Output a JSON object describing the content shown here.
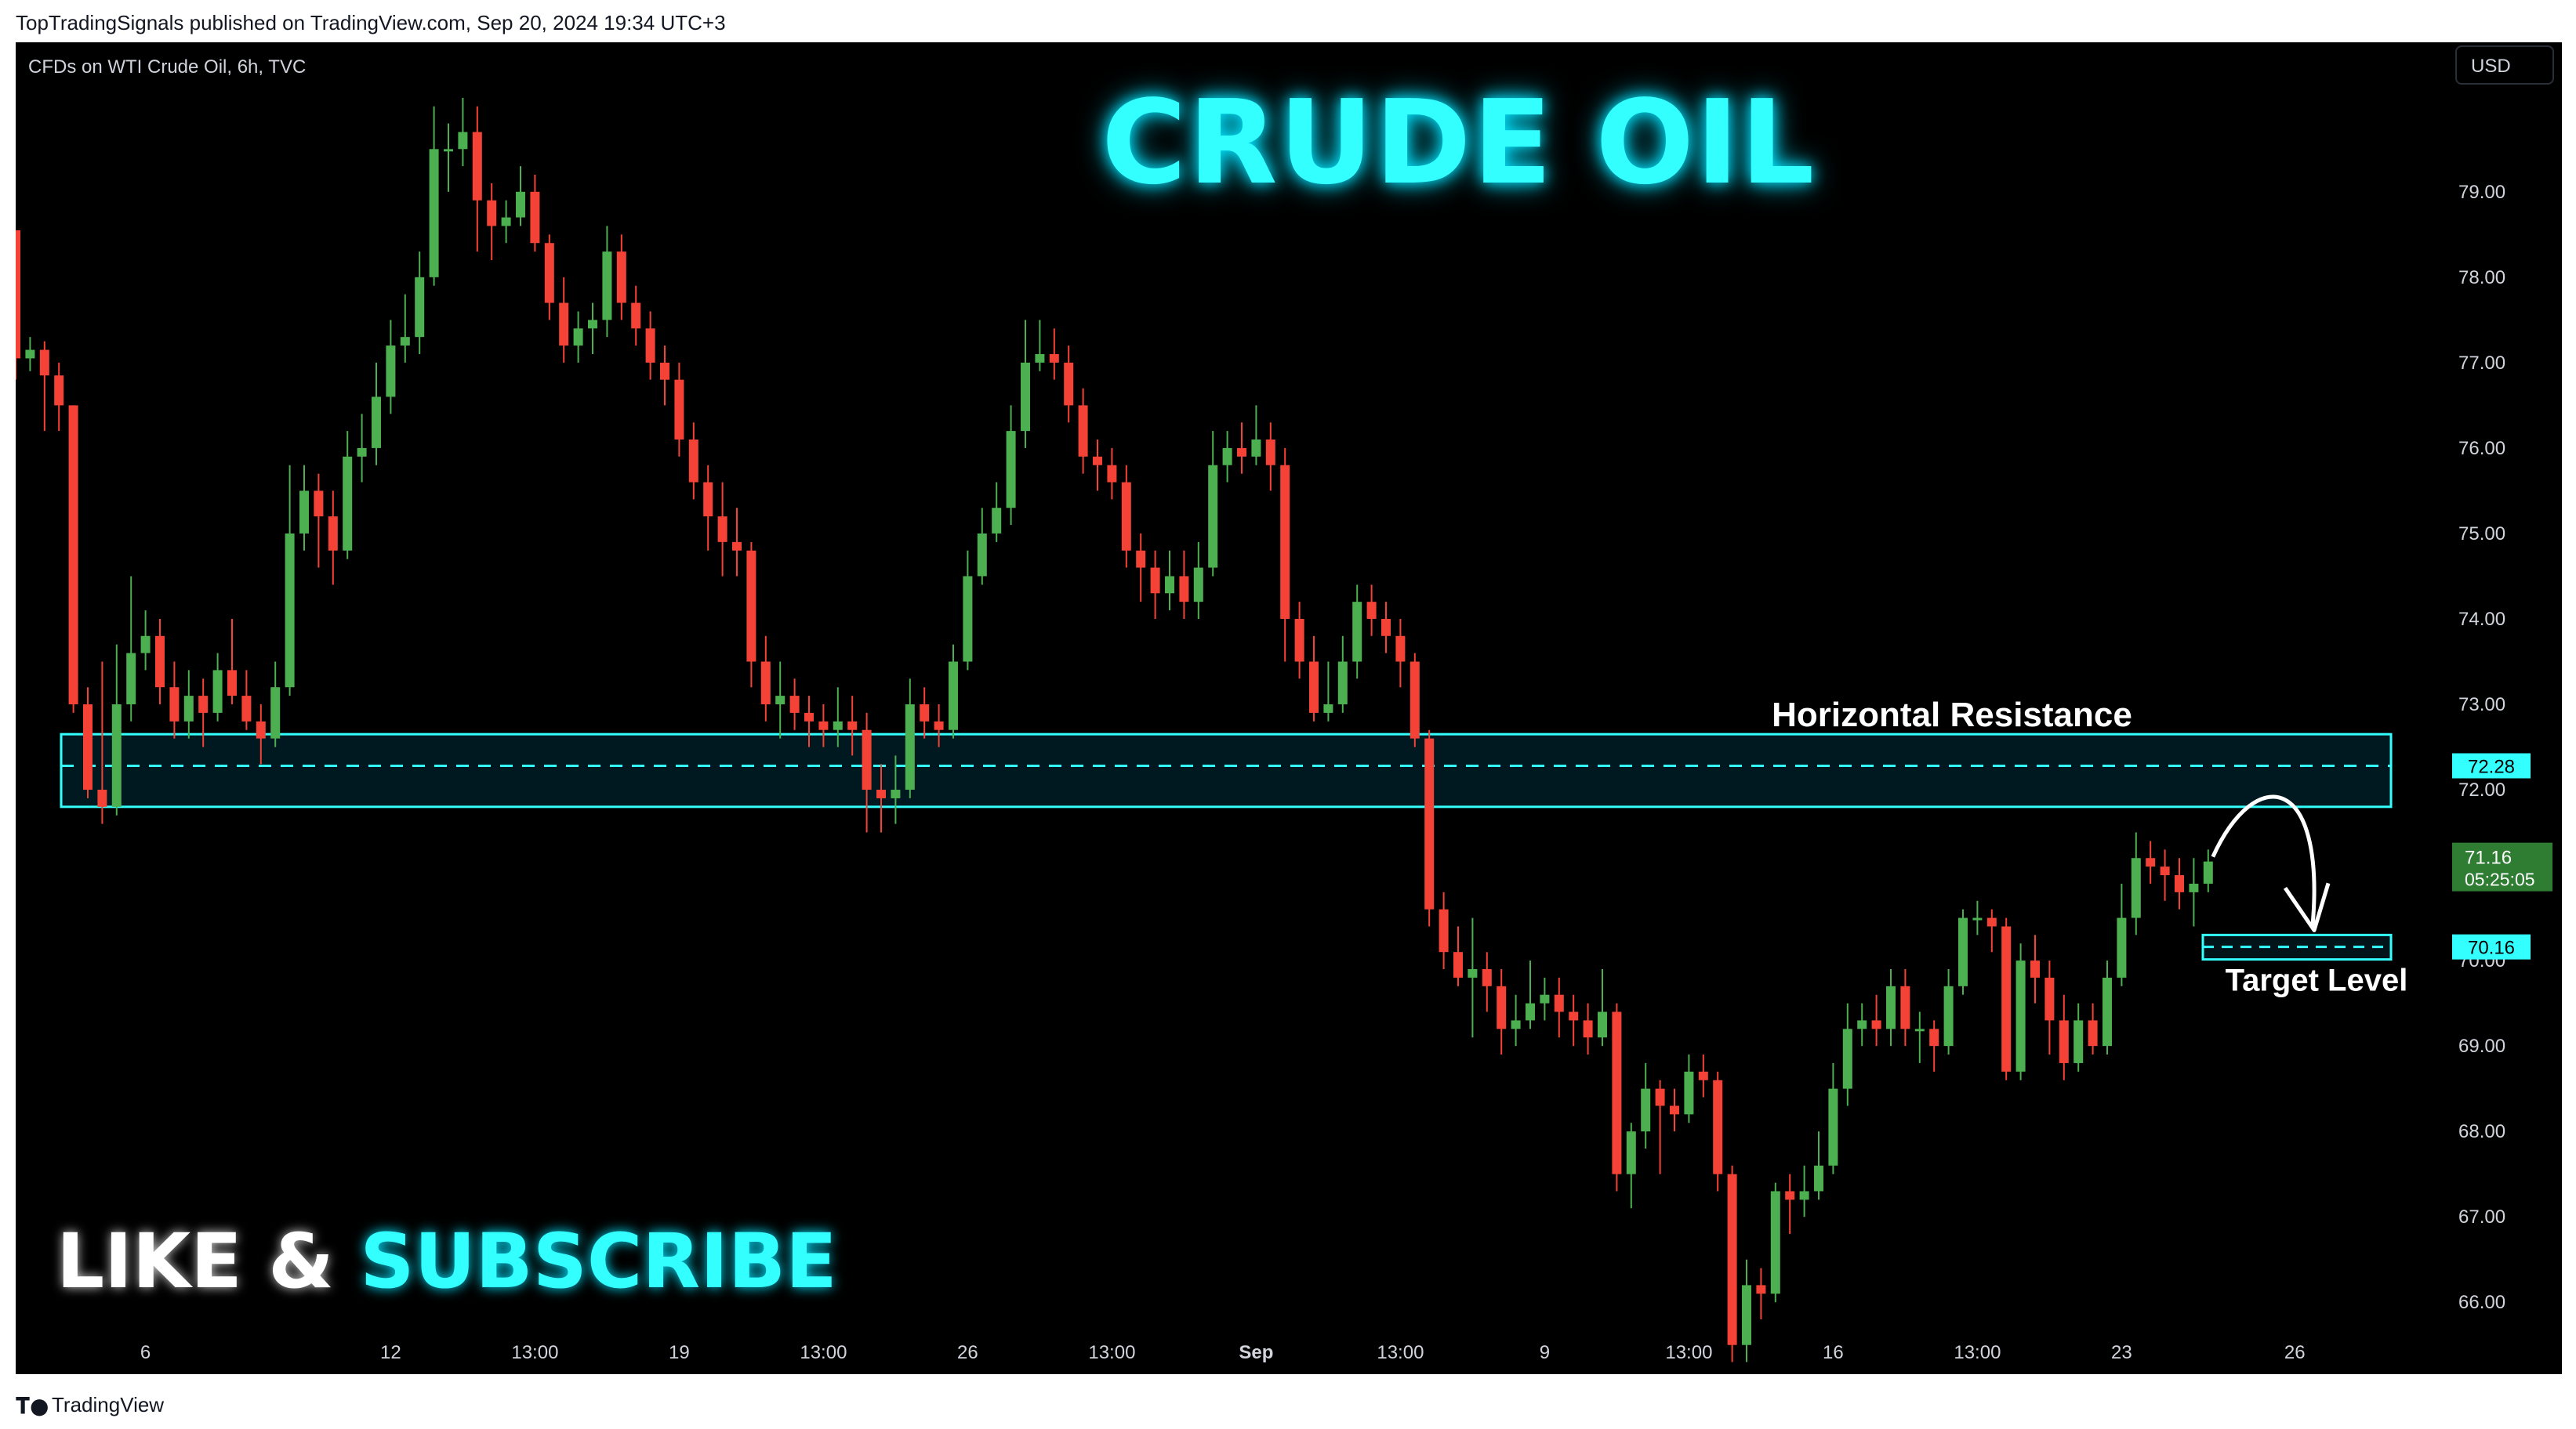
{
  "header": {
    "publish_line": "TopTradingSignals published on TradingView.com, Sep 20, 2024 19:34 UTC+3"
  },
  "chart_header": {
    "symbol_info": "CFDs on WTI Crude Oil, 6h, TVC",
    "currency": "USD"
  },
  "overlay": {
    "title": "CRUDE OIL",
    "cta_like": "LIKE & ",
    "cta_subscribe": "SUBSCRIBE"
  },
  "footer": {
    "brand": "TradingView",
    "logo_icon": "tradingview-logo-icon"
  },
  "colors": {
    "up": "#4caf50",
    "down": "#f44336",
    "accent": "#33ffff",
    "background": "#000000"
  },
  "chart_data": {
    "type": "candlestick",
    "title": "CRUDE OIL",
    "symbol": "CFDs on WTI Crude Oil, 6h, TVC",
    "ylim": [
      65.25,
      80.75
    ],
    "y_ticks": [
      "79.00",
      "78.00",
      "77.00",
      "76.00",
      "75.00",
      "74.00",
      "73.00",
      "72.00",
      "70.00",
      "69.00",
      "68.00",
      "67.00",
      "66.00"
    ],
    "x_ticks": [
      {
        "label": "6",
        "i": 9
      },
      {
        "label": "12",
        "i": 26
      },
      {
        "label": "13:00",
        "i": 36
      },
      {
        "label": "19",
        "i": 46
      },
      {
        "label": "13:00",
        "i": 56
      },
      {
        "label": "26",
        "i": 66
      },
      {
        "label": "13:00",
        "i": 76
      },
      {
        "label": "Sep",
        "i": 86
      },
      {
        "label": "13:00",
        "i": 96
      },
      {
        "label": "9",
        "i": 106
      },
      {
        "label": "13:00",
        "i": 116
      },
      {
        "label": "16",
        "i": 126
      },
      {
        "label": "13:00",
        "i": 136
      },
      {
        "label": "23",
        "i": 146
      },
      {
        "label": "26",
        "i": 158
      }
    ],
    "candles": [
      [
        78.55,
        77.05,
        78.55,
        76.8
      ],
      [
        77.05,
        77.15,
        77.3,
        76.9
      ],
      [
        77.15,
        76.85,
        77.25,
        76.2
      ],
      [
        76.85,
        76.5,
        77.0,
        76.2
      ],
      [
        76.5,
        73.0,
        76.5,
        72.9
      ],
      [
        73.0,
        72.0,
        73.2,
        71.9
      ],
      [
        72.0,
        71.8,
        73.5,
        71.6
      ],
      [
        71.8,
        73.0,
        73.7,
        71.7
      ],
      [
        73.0,
        73.6,
        74.5,
        72.8
      ],
      [
        73.6,
        73.8,
        74.1,
        73.4
      ],
      [
        73.8,
        73.2,
        74.0,
        73.0
      ],
      [
        73.2,
        72.8,
        73.5,
        72.6
      ],
      [
        72.8,
        73.1,
        73.4,
        72.6
      ],
      [
        73.1,
        72.9,
        73.3,
        72.5
      ],
      [
        72.9,
        73.4,
        73.6,
        72.8
      ],
      [
        73.4,
        73.1,
        74.0,
        73.0
      ],
      [
        73.1,
        72.8,
        73.4,
        72.7
      ],
      [
        72.8,
        72.6,
        73.0,
        72.3
      ],
      [
        72.6,
        73.2,
        73.5,
        72.5
      ],
      [
        73.2,
        75.0,
        75.8,
        73.1
      ],
      [
        75.0,
        75.5,
        75.8,
        74.8
      ],
      [
        75.5,
        75.2,
        75.7,
        74.6
      ],
      [
        75.2,
        74.8,
        75.5,
        74.4
      ],
      [
        74.8,
        75.9,
        76.2,
        74.7
      ],
      [
        75.9,
        76.0,
        76.4,
        75.6
      ],
      [
        76.0,
        76.6,
        77.0,
        75.8
      ],
      [
        76.6,
        77.2,
        77.5,
        76.4
      ],
      [
        77.2,
        77.3,
        77.8,
        77.0
      ],
      [
        77.3,
        78.0,
        78.3,
        77.1
      ],
      [
        78.0,
        79.5,
        80.0,
        77.9
      ],
      [
        79.5,
        79.5,
        79.8,
        79.0
      ],
      [
        79.5,
        79.7,
        80.1,
        79.3
      ],
      [
        79.7,
        78.9,
        80.0,
        78.3
      ],
      [
        78.9,
        78.6,
        79.1,
        78.2
      ],
      [
        78.6,
        78.7,
        78.9,
        78.4
      ],
      [
        78.7,
        79.0,
        79.3,
        78.6
      ],
      [
        79.0,
        78.4,
        79.2,
        78.3
      ],
      [
        78.4,
        77.7,
        78.5,
        77.5
      ],
      [
        77.7,
        77.2,
        78.0,
        77.0
      ],
      [
        77.2,
        77.4,
        77.6,
        77.0
      ],
      [
        77.4,
        77.5,
        77.7,
        77.1
      ],
      [
        77.5,
        78.3,
        78.6,
        77.3
      ],
      [
        78.3,
        77.7,
        78.5,
        77.5
      ],
      [
        77.7,
        77.4,
        77.9,
        77.2
      ],
      [
        77.4,
        77.0,
        77.6,
        76.8
      ],
      [
        77.0,
        76.8,
        77.2,
        76.5
      ],
      [
        76.8,
        76.1,
        77.0,
        75.9
      ],
      [
        76.1,
        75.6,
        76.3,
        75.4
      ],
      [
        75.6,
        75.2,
        75.8,
        74.8
      ],
      [
        75.2,
        74.9,
        75.6,
        74.5
      ],
      [
        74.9,
        74.8,
        75.3,
        74.5
      ],
      [
        74.8,
        73.5,
        74.9,
        73.2
      ],
      [
        73.5,
        73.0,
        73.8,
        72.8
      ],
      [
        73.0,
        73.1,
        73.5,
        72.6
      ],
      [
        73.1,
        72.9,
        73.3,
        72.7
      ],
      [
        72.9,
        72.8,
        73.1,
        72.5
      ],
      [
        72.8,
        72.7,
        73.0,
        72.5
      ],
      [
        72.7,
        72.8,
        73.2,
        72.5
      ],
      [
        72.8,
        72.7,
        73.1,
        72.4
      ],
      [
        72.7,
        72.0,
        72.9,
        71.5
      ],
      [
        72.0,
        71.9,
        72.3,
        71.5
      ],
      [
        71.9,
        72.0,
        72.4,
        71.6
      ],
      [
        72.0,
        73.0,
        73.3,
        71.9
      ],
      [
        73.0,
        72.8,
        73.2,
        72.6
      ],
      [
        72.8,
        72.7,
        73.0,
        72.5
      ],
      [
        72.7,
        73.5,
        73.7,
        72.6
      ],
      [
        73.5,
        74.5,
        74.8,
        73.4
      ],
      [
        74.5,
        75.0,
        75.3,
        74.4
      ],
      [
        75.0,
        75.3,
        75.6,
        74.9
      ],
      [
        75.3,
        76.2,
        76.5,
        75.1
      ],
      [
        76.2,
        77.0,
        77.5,
        76.0
      ],
      [
        77.0,
        77.1,
        77.5,
        76.9
      ],
      [
        77.1,
        77.0,
        77.4,
        76.8
      ],
      [
        77.0,
        76.5,
        77.2,
        76.3
      ],
      [
        76.5,
        75.9,
        76.7,
        75.7
      ],
      [
        75.9,
        75.8,
        76.1,
        75.5
      ],
      [
        75.8,
        75.6,
        76.0,
        75.4
      ],
      [
        75.6,
        74.8,
        75.8,
        74.6
      ],
      [
        74.8,
        74.6,
        75.0,
        74.2
      ],
      [
        74.6,
        74.3,
        74.8,
        74.0
      ],
      [
        74.3,
        74.5,
        74.8,
        74.1
      ],
      [
        74.5,
        74.2,
        74.8,
        74.0
      ],
      [
        74.2,
        74.6,
        74.9,
        74.0
      ],
      [
        74.6,
        75.8,
        76.2,
        74.5
      ],
      [
        75.8,
        76.0,
        76.2,
        75.6
      ],
      [
        76.0,
        75.9,
        76.3,
        75.7
      ],
      [
        75.9,
        76.1,
        76.5,
        75.8
      ],
      [
        76.1,
        75.8,
        76.3,
        75.5
      ],
      [
        75.8,
        74.0,
        76.0,
        73.5
      ],
      [
        74.0,
        73.5,
        74.2,
        73.3
      ],
      [
        73.5,
        72.9,
        73.8,
        72.8
      ],
      [
        72.9,
        73.0,
        73.5,
        72.8
      ],
      [
        73.0,
        73.5,
        73.8,
        72.9
      ],
      [
        73.5,
        74.2,
        74.4,
        73.3
      ],
      [
        74.2,
        74.0,
        74.4,
        73.8
      ],
      [
        74.0,
        73.8,
        74.2,
        73.6
      ],
      [
        73.8,
        73.5,
        74.0,
        73.2
      ],
      [
        73.5,
        72.6,
        73.6,
        72.5
      ],
      [
        72.6,
        70.6,
        72.7,
        70.4
      ],
      [
        70.6,
        70.1,
        70.8,
        69.9
      ],
      [
        70.1,
        69.8,
        70.4,
        69.7
      ],
      [
        69.8,
        69.9,
        70.5,
        69.1
      ],
      [
        69.9,
        69.7,
        70.1,
        69.4
      ],
      [
        69.7,
        69.2,
        69.9,
        68.9
      ],
      [
        69.2,
        69.3,
        69.6,
        69.0
      ],
      [
        69.3,
        69.5,
        70.0,
        69.2
      ],
      [
        69.5,
        69.6,
        69.8,
        69.3
      ],
      [
        69.6,
        69.4,
        69.8,
        69.1
      ],
      [
        69.4,
        69.3,
        69.6,
        69.0
      ],
      [
        69.3,
        69.1,
        69.5,
        68.9
      ],
      [
        69.1,
        69.4,
        69.9,
        69.0
      ],
      [
        69.4,
        67.5,
        69.5,
        67.3
      ],
      [
        67.5,
        68.0,
        68.1,
        67.1
      ],
      [
        68.0,
        68.5,
        68.8,
        67.8
      ],
      [
        68.5,
        68.3,
        68.6,
        67.5
      ],
      [
        68.3,
        68.2,
        68.5,
        68.0
      ],
      [
        68.2,
        68.7,
        68.9,
        68.1
      ],
      [
        68.7,
        68.6,
        68.9,
        68.4
      ],
      [
        68.6,
        67.5,
        68.7,
        67.3
      ],
      [
        67.5,
        65.5,
        67.6,
        65.3
      ],
      [
        65.5,
        66.2,
        66.5,
        65.3
      ],
      [
        66.2,
        66.1,
        66.4,
        65.8
      ],
      [
        66.1,
        67.3,
        67.4,
        66.0
      ],
      [
        67.3,
        67.2,
        67.5,
        66.8
      ],
      [
        67.2,
        67.3,
        67.6,
        67.0
      ],
      [
        67.3,
        67.6,
        68.0,
        67.2
      ],
      [
        67.6,
        68.5,
        68.8,
        67.5
      ],
      [
        68.5,
        69.2,
        69.5,
        68.3
      ],
      [
        69.2,
        69.3,
        69.5,
        69.0
      ],
      [
        69.3,
        69.2,
        69.6,
        69.0
      ],
      [
        69.2,
        69.7,
        69.9,
        69.0
      ],
      [
        69.7,
        69.2,
        69.9,
        69.0
      ],
      [
        69.2,
        69.2,
        69.4,
        68.8
      ],
      [
        69.2,
        69.0,
        69.3,
        68.7
      ],
      [
        69.0,
        69.7,
        69.9,
        68.9
      ],
      [
        69.7,
        70.5,
        70.6,
        69.6
      ],
      [
        70.5,
        70.5,
        70.7,
        70.3
      ],
      [
        70.5,
        70.4,
        70.6,
        70.1
      ],
      [
        70.4,
        68.7,
        70.5,
        68.6
      ],
      [
        68.7,
        70.0,
        70.2,
        68.6
      ],
      [
        70.0,
        69.8,
        70.3,
        69.5
      ],
      [
        69.8,
        69.3,
        70.0,
        68.9
      ],
      [
        69.3,
        68.8,
        69.6,
        68.6
      ],
      [
        68.8,
        69.3,
        69.5,
        68.7
      ],
      [
        69.3,
        69.0,
        69.5,
        68.9
      ],
      [
        69.0,
        69.8,
        70.0,
        68.9
      ],
      [
        69.8,
        70.5,
        70.9,
        69.7
      ],
      [
        70.5,
        71.2,
        71.5,
        70.3
      ],
      [
        71.2,
        71.1,
        71.4,
        70.9
      ],
      [
        71.1,
        71.0,
        71.3,
        70.7
      ],
      [
        71.0,
        70.8,
        71.2,
        70.6
      ],
      [
        70.8,
        70.9,
        71.2,
        70.4
      ],
      [
        70.9,
        71.16,
        71.3,
        70.8
      ]
    ],
    "annotations": {
      "resistance_zone": {
        "label": "Horizontal Resistance",
        "top": 72.65,
        "bottom": 71.8,
        "level": 72.28,
        "level_label": "72.28"
      },
      "target_zone": {
        "label": "Target Level",
        "top": 70.3,
        "bottom": 70.05,
        "level": 70.16,
        "level_label": "70.16"
      },
      "current_price": {
        "value": 71.16,
        "label": "71.16",
        "countdown": "05:25:05"
      }
    }
  }
}
